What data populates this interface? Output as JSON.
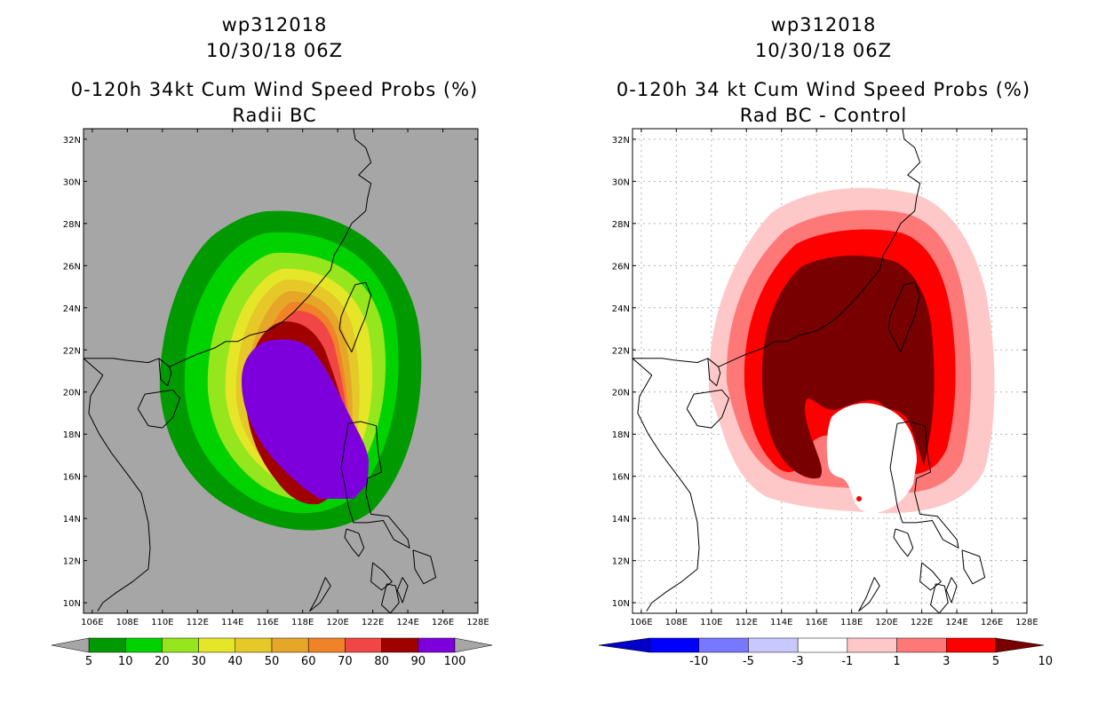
{
  "chart_data": [
    {
      "type": "heatmap",
      "storm_id": "wp312018",
      "datetime": "10/30/18 06Z",
      "title": "0-120h 34kt Cum Wind Speed Probs (%)",
      "subtitle": "Radii BC",
      "x_ticks": [
        "106E",
        "108E",
        "110E",
        "112E",
        "114E",
        "116E",
        "118E",
        "120E",
        "122E",
        "124E",
        "126E",
        "128E"
      ],
      "y_ticks": [
        "10N",
        "12N",
        "14N",
        "16N",
        "18N",
        "20N",
        "22N",
        "24N",
        "26N",
        "28N",
        "30N",
        "32N"
      ],
      "xlim": [
        105.5,
        128
      ],
      "ylim": [
        9.5,
        32.5
      ],
      "background_color": "#a6a6a6",
      "colorbar": {
        "levels": [
          "5",
          "10",
          "20",
          "30",
          "40",
          "50",
          "60",
          "70",
          "80",
          "90",
          "100"
        ],
        "colors": [
          "#009a00",
          "#00d200",
          "#96e61e",
          "#e6e628",
          "#e6c828",
          "#e6a628",
          "#f08228",
          "#f04646",
          "#a00000",
          "#7d00dc"
        ]
      }
    },
    {
      "type": "heatmap",
      "storm_id": "wp312018",
      "datetime": "10/30/18 06Z",
      "title": "0-120h 34 kt Cum Wind Speed Probs (%)",
      "subtitle": "Rad BC - Control",
      "x_ticks": [
        "106E",
        "108E",
        "110E",
        "112E",
        "114E",
        "116E",
        "118E",
        "120E",
        "122E",
        "124E",
        "126E",
        "128E"
      ],
      "y_ticks": [
        "10N",
        "12N",
        "14N",
        "16N",
        "18N",
        "20N",
        "22N",
        "24N",
        "26N",
        "28N",
        "30N",
        "32N"
      ],
      "xlim": [
        105.5,
        128
      ],
      "ylim": [
        9.5,
        32.5
      ],
      "background_color": "#ffffff",
      "colorbar": {
        "levels": [
          "-10",
          "-5",
          "-3",
          "-1",
          "1",
          "3",
          "5",
          "10"
        ],
        "colors": [
          "#0000c8",
          "#0000ff",
          "#7878ff",
          "#c8c8ff",
          "#ffffff",
          "#ffc8c8",
          "#ff7878",
          "#ff0000",
          "#780000"
        ]
      }
    }
  ]
}
